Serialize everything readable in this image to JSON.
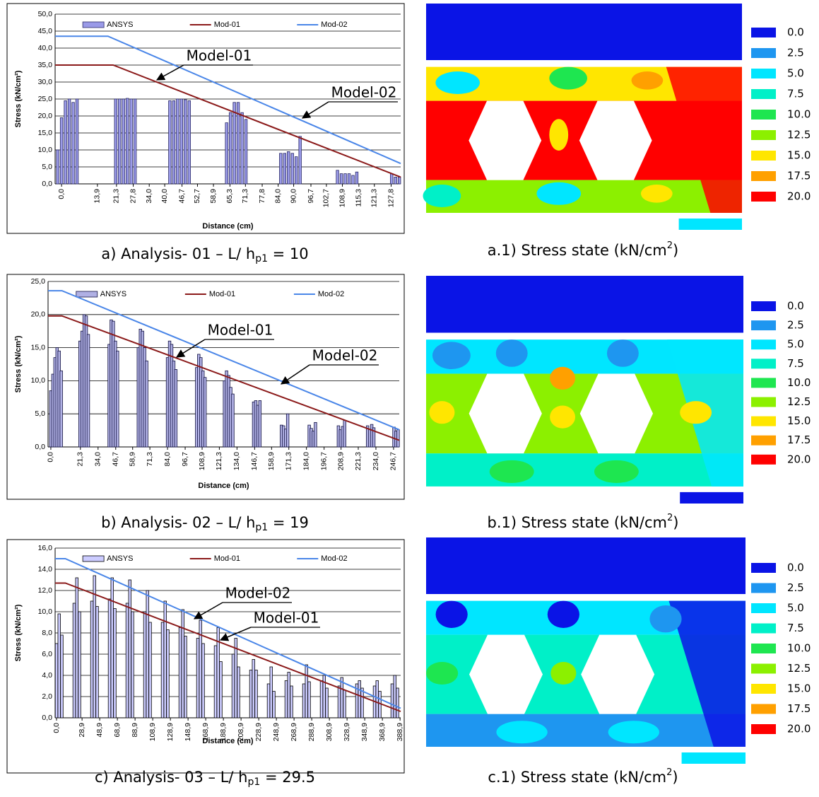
{
  "chart_data": [
    {
      "type": "combo",
      "y_label": "Stress (kN/cm²)",
      "x_label": "Distance (cm)",
      "grid": true,
      "legend": "top",
      "xlim": [
        -2.5,
        131.5
      ],
      "ylim": [
        0,
        50
      ],
      "yticks": [
        {
          "value": 0,
          "label": "0,0"
        },
        {
          "value": 5,
          "label": "5,0"
        },
        {
          "value": 10,
          "label": "10,0"
        },
        {
          "value": 15,
          "label": "15,0"
        },
        {
          "value": 20,
          "label": "20,0"
        },
        {
          "value": 25,
          "label": "25,0"
        },
        {
          "value": 30,
          "label": "30,0"
        },
        {
          "value": 35,
          "label": "35,0"
        },
        {
          "value": 40,
          "label": "40,0"
        },
        {
          "value": 45,
          "label": "45,0"
        },
        {
          "value": 50,
          "label": "50,0"
        }
      ],
      "xticks": [
        {
          "value": 0,
          "label": "0,0"
        },
        {
          "value": 13.9,
          "label": "13,9"
        },
        {
          "value": 21.3,
          "label": "21,3"
        },
        {
          "value": 27.8,
          "label": "27,8"
        },
        {
          "value": 34,
          "label": "34,0"
        },
        {
          "value": 40,
          "label": "40,0"
        },
        {
          "value": 46.7,
          "label": "46,7"
        },
        {
          "value": 52.7,
          "label": "52,7"
        },
        {
          "value": 58.9,
          "label": "58,9"
        },
        {
          "value": 65.3,
          "label": "65,3"
        },
        {
          "value": 71.3,
          "label": "71,3"
        },
        {
          "value": 77.8,
          "label": "77,8"
        },
        {
          "value": 84,
          "label": "84,0"
        },
        {
          "value": 90,
          "label": "90,0"
        },
        {
          "value": 96.7,
          "label": "96,7"
        },
        {
          "value": 102.7,
          "label": "102,7"
        },
        {
          "value": 108.9,
          "label": "108,9"
        },
        {
          "value": 115.3,
          "label": "115,3"
        },
        {
          "value": 121.3,
          "label": "121,3"
        },
        {
          "value": 127.8,
          "label": "127,8"
        }
      ],
      "series": [
        {
          "name": "ANSYS",
          "kind": "bar",
          "color": "#9a9ae8",
          "edge": "#2a2a66",
          "x": [
            -1.5,
            0,
            1.5,
            3,
            4.5,
            6,
            21,
            22.5,
            24,
            25.5,
            27,
            28.5,
            42,
            43.5,
            45,
            46.5,
            48,
            49.5,
            64,
            65.5,
            67,
            68.5,
            70,
            71.5,
            85,
            86.5,
            88,
            89.5,
            91,
            92.5,
            107,
            108.5,
            110,
            111.5,
            113,
            114.5,
            128,
            129.5,
            131
          ],
          "values": [
            10,
            19.5,
            24.5,
            25,
            24,
            25,
            25,
            25,
            25,
            25.2,
            25,
            25,
            24.5,
            24.5,
            25,
            25,
            24.8,
            24.5,
            18,
            21,
            24,
            24,
            21,
            19,
            9,
            9,
            9.5,
            9,
            8,
            14,
            4,
            3,
            3,
            3,
            2.5,
            3.5,
            3,
            2,
            2
          ]
        },
        {
          "name": "Mod-01",
          "kind": "line",
          "color": "#8b1a1a",
          "x": [
            -2.5,
            20,
            131.5
          ],
          "values": [
            35,
            35,
            2
          ]
        },
        {
          "name": "Mod-02",
          "kind": "line",
          "color": "#4a86e8",
          "x": [
            -2.5,
            18,
            131.5
          ],
          "values": [
            43.5,
            43.5,
            6
          ]
        }
      ],
      "annotations": [
        "Model-01",
        "Model-02"
      ]
    },
    {
      "type": "combo",
      "y_label": "Stress (kN/cm²)",
      "x_label": "Distance (cm)",
      "grid": true,
      "legend": "top",
      "xlim": [
        -2,
        250.8
      ],
      "ylim": [
        0,
        25
      ],
      "yticks": [
        {
          "value": 0,
          "label": "0,0"
        },
        {
          "value": 5,
          "label": "5,0"
        },
        {
          "value": 10,
          "label": "10,0"
        },
        {
          "value": 15,
          "label": "15,0"
        },
        {
          "value": 20,
          "label": "20,0"
        },
        {
          "value": 25,
          "label": "25,0"
        }
      ],
      "xticks": [
        {
          "value": 0,
          "label": "0,0"
        },
        {
          "value": 21.3,
          "label": "21,3"
        },
        {
          "value": 34,
          "label": "34,0"
        },
        {
          "value": 46.7,
          "label": "46,7"
        },
        {
          "value": 58.9,
          "label": "58,9"
        },
        {
          "value": 71.3,
          "label": "71,3"
        },
        {
          "value": 84,
          "label": "84,0"
        },
        {
          "value": 96.7,
          "label": "96,7"
        },
        {
          "value": 108.9,
          "label": "108,9"
        },
        {
          "value": 121.3,
          "label": "121,3"
        },
        {
          "value": 134,
          "label": "134,0"
        },
        {
          "value": 146.7,
          "label": "146,7"
        },
        {
          "value": 158.9,
          "label": "158,9"
        },
        {
          "value": 171.3,
          "label": "171,3"
        },
        {
          "value": 184,
          "label": "184,0"
        },
        {
          "value": 196.7,
          "label": "196,7"
        },
        {
          "value": 208.9,
          "label": "208,9"
        },
        {
          "value": 221.3,
          "label": "221,3"
        },
        {
          "value": 234,
          "label": "234,0"
        },
        {
          "value": 246.7,
          "label": "246,7"
        }
      ],
      "series": [
        {
          "name": "ANSYS",
          "kind": "bar",
          "color": "#b0b0e4",
          "edge": "#101040",
          "x": [
            0,
            1.5,
            3,
            4.5,
            6,
            7.5,
            21,
            22.5,
            24,
            25.5,
            27,
            42,
            43.5,
            45,
            46.5,
            48,
            63,
            64.5,
            66,
            67.5,
            69,
            84,
            85.5,
            87,
            88.5,
            90,
            105,
            106.5,
            108,
            109.5,
            111,
            125,
            126.5,
            128,
            129.5,
            131,
            146,
            147.5,
            149,
            150.5,
            166,
            167.5,
            169,
            170.5,
            186,
            187.5,
            189,
            190.5,
            207,
            208.5,
            210,
            211.5,
            228,
            229.5,
            231,
            232.5,
            247,
            248.5,
            250
          ],
          "values": [
            8.5,
            11,
            13.5,
            15,
            14.5,
            11.5,
            16,
            17.5,
            20,
            19.8,
            17,
            15.5,
            19.2,
            19,
            16,
            14.5,
            15,
            17.8,
            17.5,
            15,
            13,
            13.5,
            16,
            15.5,
            13,
            11.7,
            12,
            14,
            13.5,
            11.5,
            10.5,
            10,
            11.5,
            10.8,
            9,
            8,
            6.8,
            7,
            6.3,
            7,
            3.3,
            3.2,
            2.7,
            5,
            3.3,
            2.8,
            2.4,
            3.7,
            3.2,
            2.6,
            3.1,
            4,
            3.2,
            2.7,
            3.4,
            2.9,
            3,
            2.4,
            2.6
          ]
        },
        {
          "name": "Mod-01",
          "kind": "line",
          "color": "#8b1a1a",
          "x": [
            -2,
            8,
            250.8
          ],
          "values": [
            19.8,
            19.8,
            1
          ]
        },
        {
          "name": "Mod-02",
          "kind": "line",
          "color": "#4a86e8",
          "x": [
            -2,
            8,
            250.8
          ],
          "values": [
            23.6,
            23.6,
            2.6
          ]
        }
      ],
      "annotations": [
        "Model-01",
        "Model-02"
      ]
    },
    {
      "type": "combo",
      "y_label": "Stress (kN/cm²)",
      "x_label": "Distance (cm)",
      "grid": true,
      "legend": "top",
      "xlim": [
        -1.6,
        389.6
      ],
      "ylim": [
        0,
        16
      ],
      "yticks": [
        {
          "value": 0,
          "label": "0,0"
        },
        {
          "value": 2,
          "label": "2,0"
        },
        {
          "value": 4,
          "label": "4,0"
        },
        {
          "value": 6,
          "label": "6,0"
        },
        {
          "value": 8,
          "label": "8,0"
        },
        {
          "value": 10,
          "label": "10,0"
        },
        {
          "value": 12,
          "label": "12,0"
        },
        {
          "value": 14,
          "label": "14,0"
        },
        {
          "value": 16,
          "label": "16,0"
        }
      ],
      "xticks": [
        {
          "value": 0,
          "label": "0,0"
        },
        {
          "value": 28.9,
          "label": "28,9"
        },
        {
          "value": 48.9,
          "label": "48,9"
        },
        {
          "value": 68.9,
          "label": "68,9"
        },
        {
          "value": 88.9,
          "label": "88,9"
        },
        {
          "value": 108.9,
          "label": "108,9"
        },
        {
          "value": 128.9,
          "label": "128,9"
        },
        {
          "value": 148.9,
          "label": "148,9"
        },
        {
          "value": 168.9,
          "label": "168,9"
        },
        {
          "value": 188.9,
          "label": "188,9"
        },
        {
          "value": 208.9,
          "label": "208,9"
        },
        {
          "value": 228.9,
          "label": "228,9"
        },
        {
          "value": 248.9,
          "label": "248,9"
        },
        {
          "value": 268.9,
          "label": "268,9"
        },
        {
          "value": 288.9,
          "label": "288,9"
        },
        {
          "value": 308.9,
          "label": "308,9"
        },
        {
          "value": 328.9,
          "label": "328,9"
        },
        {
          "value": 348.9,
          "label": "348,9"
        },
        {
          "value": 368.9,
          "label": "368,9"
        },
        {
          "value": 388.9,
          "label": "388,9"
        }
      ],
      "series": [
        {
          "name": "ANSYS",
          "kind": "bar",
          "color": "#ccccff",
          "edge": "#000000",
          "x": [
            0,
            3,
            6,
            20,
            23,
            26,
            40,
            43,
            46,
            60,
            63,
            66,
            80,
            83,
            86,
            100,
            103,
            106,
            120,
            123,
            126,
            140,
            143,
            146,
            160,
            163,
            166,
            180,
            183,
            186,
            200,
            203,
            206,
            220,
            223,
            226,
            240,
            243,
            246,
            260,
            263,
            266,
            280,
            283,
            286,
            300,
            303,
            306,
            320,
            323,
            326,
            340,
            343,
            346,
            360,
            363,
            366,
            380,
            383,
            386
          ],
          "values": [
            7,
            9.8,
            7.8,
            10.8,
            13.2,
            10,
            11,
            13.4,
            10.5,
            11.2,
            13.2,
            10.3,
            10.8,
            13,
            10,
            10,
            12,
            9,
            9,
            11,
            8.3,
            8.5,
            10.2,
            7.7,
            7.5,
            9.2,
            7,
            6.8,
            8.5,
            5.3,
            6,
            7.5,
            4.8,
            4.5,
            5.5,
            4.5,
            3.2,
            4.8,
            2.5,
            3.5,
            4.3,
            3,
            3.2,
            5,
            3.4,
            3.5,
            4,
            2.8,
            3,
            3.8,
            2.6,
            3.2,
            3.5,
            2.8,
            3,
            3.5,
            2.5,
            3.2,
            4,
            2.8
          ]
        },
        {
          "name": "Mod-01",
          "kind": "line",
          "color": "#8b1a1a",
          "x": [
            -1.6,
            10,
            389.6
          ],
          "values": [
            12.7,
            12.7,
            0.6
          ]
        },
        {
          "name": "Mod-02",
          "kind": "line",
          "color": "#4a86e8",
          "x": [
            -1.6,
            10,
            389.6
          ],
          "values": [
            15,
            15,
            0.9
          ]
        }
      ],
      "annotations": [
        "Model-02",
        "Model-01"
      ]
    }
  ],
  "captions": [
    {
      "text": "a) Analysis- 01 – L/ h",
      "sub": "p1",
      "tail": "  = 10"
    },
    {
      "text": "b) Analysis- 02 – L/ h",
      "sub": "p1",
      "tail": "  = 19"
    },
    {
      "text": "c) Analysis- 03 – L/ h",
      "sub": "p1",
      "tail": "  = 29.5"
    }
  ],
  "contour_captions": [
    {
      "text": "a.1) Stress state (kN/cm",
      "sup": "2",
      "tail": ")"
    },
    {
      "text": "b.1) Stress state (kN/cm",
      "sup": "2",
      "tail": ")"
    },
    {
      "text": "c.1) Stress state (kN/cm",
      "sup": "2",
      "tail": ")"
    }
  ],
  "contour_legend": {
    "labels": [
      "0.0",
      "2.5",
      "5.0",
      "7.5",
      "10.0",
      "12.5",
      "15.0",
      "17.5",
      "20.0"
    ],
    "colors": [
      "#0a14e6",
      "#1e96f0",
      "#00e6ff",
      "#00f0c8",
      "#1ee650",
      "#8cf000",
      "#ffe600",
      "#ffa000",
      "#ff0000"
    ]
  }
}
